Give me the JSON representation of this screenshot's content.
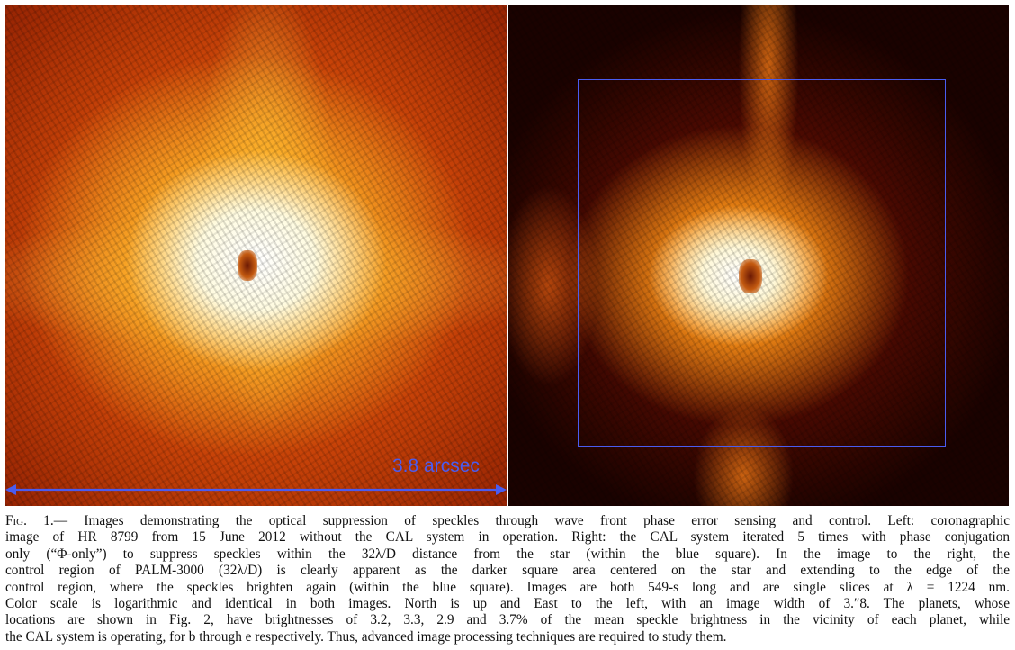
{
  "figure": {
    "scale_label": "3.8 arcsec",
    "colors": {
      "scale_bar": "#4a5cf0",
      "control_square": "#4a5cf0"
    }
  },
  "caption": {
    "label": "Fig. 1.",
    "lines": [
      "— Images demonstrating the optical suppression of speckles through wave front phase error sensing and control. Left: coronagraphic",
      "image of HR 8799 from 15 June 2012 without the CAL system in operation. Right: the CAL system iterated 5 times with phase conjugation",
      "only (“Φ-only”) to suppress speckles within the 32λ/D distance from the star (within the blue square). In the image to the right, the",
      "control region of PALM-3000 (32λ/D) is clearly apparent as the darker square area centered on the star and extending to the edge of the",
      "control region, where the speckles brighten again (within the blue square). Images are both 549-s long and are single slices at λ = 1224 nm.",
      "Color scale is logarithmic and identical in both images. North is up and East to the left, with an image width of 3.″8. The planets, whose",
      "locations are shown in Fig. 2, have brightnesses of 3.2, 3.3, 2.9 and 3.7% of the mean speckle brightness in the vicinity of each planet, while",
      "the CAL system is operating, for b through e respectively. Thus, advanced image processing techniques are required to study them."
    ]
  }
}
